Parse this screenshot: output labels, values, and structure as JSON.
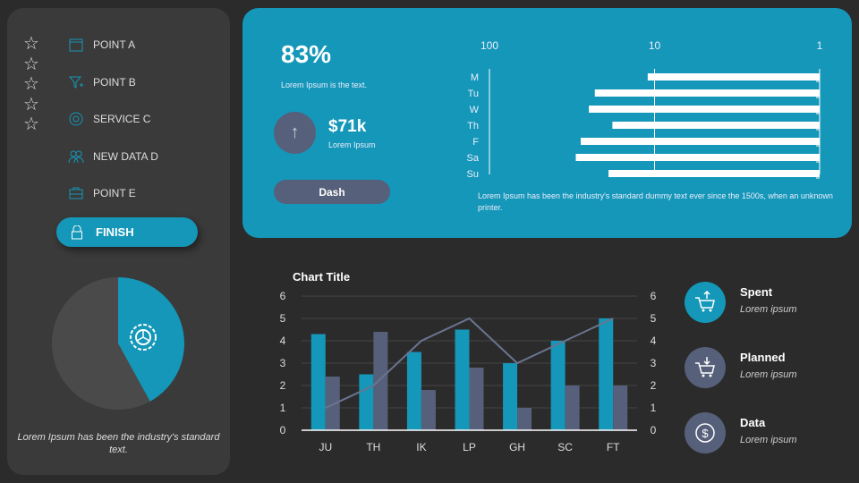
{
  "sidebar": {
    "rating": {
      "stars": 5,
      "filled": 0
    },
    "items": [
      {
        "label": "POINT A",
        "icon": "calendar-icon"
      },
      {
        "label": "POINT B",
        "icon": "filter-plus-icon"
      },
      {
        "label": "SERVICE C",
        "icon": "gear-flower-icon"
      },
      {
        "label": "NEW DATA  D",
        "icon": "users-icon"
      },
      {
        "label": "POINT E",
        "icon": "briefcase-icon"
      }
    ],
    "finish": {
      "label": "FINISH",
      "icon": "lock-icon"
    },
    "pie": {
      "slices": [
        {
          "value": 42,
          "color": "#1497b8"
        },
        {
          "value": 58,
          "color": "#4a4a4a"
        }
      ],
      "icon": "gear-icon"
    },
    "caption": "Lorem Ipsum has been the industry's standard text."
  },
  "hero": {
    "percent": "83%",
    "percent_caption": "Lorem Ipsum is the text.",
    "amount": "$71k",
    "amount_caption": "Lorem Ipsum",
    "arrow_icon": "arrow-up-icon",
    "button": "Dash",
    "text": "Lorem Ipsum has been the  industry's standard dummy text  ever  since the 1500s, when an unknown printer."
  },
  "chart_data": [
    {
      "type": "bar",
      "orientation": "horizontal",
      "x_scale": "log",
      "x_reversed": true,
      "xlim": [
        100,
        1
      ],
      "x_ticks": [
        "100",
        "10",
        "1"
      ],
      "categories": [
        "M",
        "Tu",
        "W",
        "Th",
        "F",
        "Sa",
        "Su"
      ],
      "values": [
        11,
        23,
        25,
        18,
        28,
        30,
        19
      ],
      "color": "#ffffff",
      "grid": true
    },
    {
      "type": "bar",
      "title": "Chart Title",
      "categories": [
        "JU",
        "TH",
        "IK",
        "LP",
        "GH",
        "SC",
        "FT"
      ],
      "ylim": [
        0,
        6
      ],
      "y_ticks": [
        "0",
        "1",
        "2",
        "3",
        "4",
        "5",
        "6"
      ],
      "y2_ticks": [
        "0",
        "1",
        "2",
        "3",
        "4",
        "5",
        "6"
      ],
      "grid": true,
      "series": [
        {
          "type": "bar",
          "values": [
            4.3,
            2.5,
            3.5,
            4.5,
            3,
            4,
            5
          ],
          "color": "#1497b8"
        },
        {
          "type": "bar",
          "values": [
            2.4,
            4.4,
            1.8,
            2.8,
            1,
            2,
            2
          ],
          "color": "#56607a"
        },
        {
          "type": "line",
          "values": [
            1,
            2,
            4,
            5,
            3,
            4,
            5
          ],
          "color": "#6a7490"
        }
      ]
    }
  ],
  "stats": [
    {
      "title": "Spent",
      "sub": "Lorem ipsum",
      "icon": "cart-up-icon",
      "color": "#1497b8"
    },
    {
      "title": "Planned",
      "sub": "Lorem ipsum",
      "icon": "cart-down-icon",
      "color": "#56607a"
    },
    {
      "title": "Data",
      "sub": "Lorem ipsum",
      "icon": "dollar-icon",
      "color": "#56607a"
    }
  ]
}
